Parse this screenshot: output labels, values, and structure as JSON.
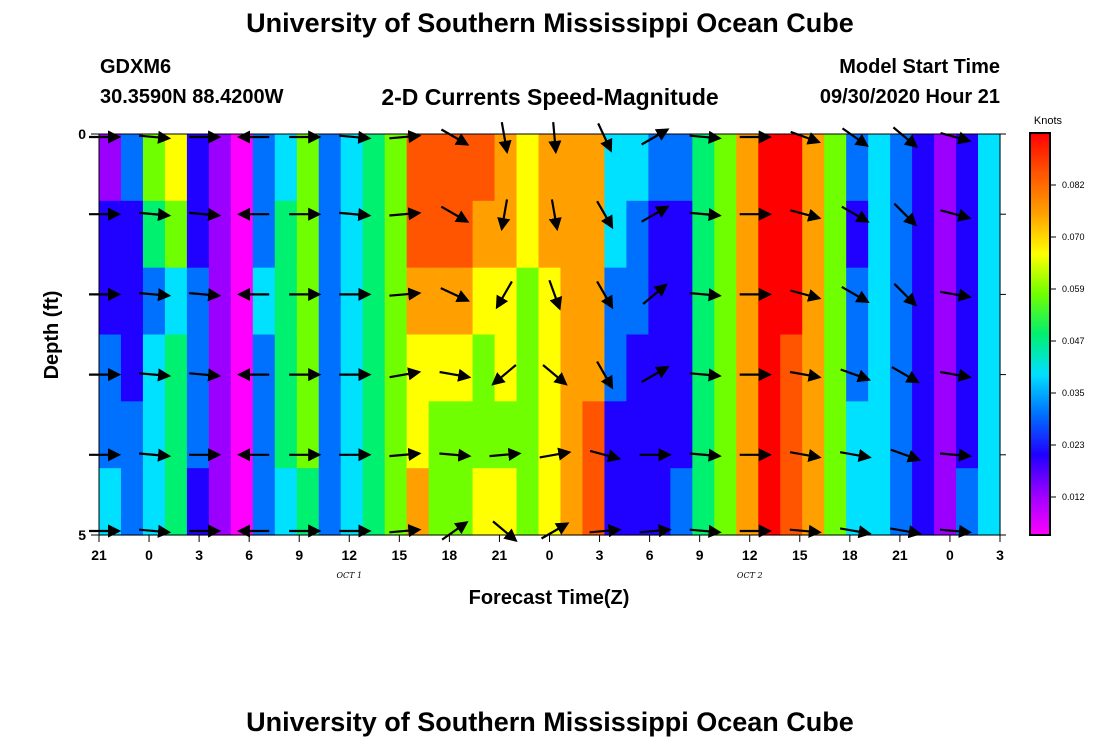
{
  "header": {
    "title": "University of Southern Mississippi Ocean Cube",
    "station_id": "GDXM6",
    "station_coords": "30.3590N 88.4200W",
    "subtitle": "2-D Currents Speed-Magnitude",
    "model_start_label": "Model Start Time",
    "model_start_value": "09/30/2020 Hour 21"
  },
  "footer": {
    "title": "University of Southern Mississippi Ocean Cube"
  },
  "chart_data": {
    "type": "heatmap",
    "title": "2-D Currents Speed-Magnitude",
    "xlabel": "Forecast Time(Z)",
    "ylabel": "Depth (ft)",
    "x_tick_labels": [
      "21",
      "0",
      "3",
      "6",
      "9",
      "12",
      "15",
      "18",
      "21",
      "0",
      "3",
      "6",
      "9",
      "12",
      "15",
      "18",
      "21",
      "0",
      "3"
    ],
    "date_labels": [
      {
        "label": "OCT 1",
        "at_tick": 5
      },
      {
        "label": "OCT 2",
        "at_tick": 13
      }
    ],
    "y_tick_labels": [
      "0",
      "5"
    ],
    "ylim": [
      0,
      5
    ],
    "colorbar": {
      "unit": "Knots",
      "tick_labels": [
        "0.082",
        "0.070",
        "0.059",
        "0.047",
        "0.035",
        "0.023",
        "0.012"
      ],
      "stops": [
        "#ff00ff",
        "#9b00ff",
        "#2000ff",
        "#0070ff",
        "#00e0ff",
        "#00f070",
        "#70ff00",
        "#ffff00",
        "#ffa000",
        "#ff5500",
        "#ff0000"
      ]
    },
    "columns": [
      [
        1,
        2,
        2,
        3,
        3,
        4
      ],
      [
        3,
        2,
        2,
        2,
        3,
        3
      ],
      [
        6,
        5,
        3,
        4,
        4,
        4
      ],
      [
        7,
        6,
        4,
        5,
        5,
        5
      ],
      [
        2,
        2,
        3,
        3,
        3,
        2
      ],
      [
        1,
        1,
        1,
        1,
        1,
        1
      ],
      [
        0,
        0,
        0,
        0,
        0,
        0
      ],
      [
        3,
        3,
        4,
        3,
        3,
        3
      ],
      [
        4,
        5,
        5,
        5,
        5,
        4
      ],
      [
        6,
        6,
        6,
        6,
        6,
        5
      ],
      [
        3,
        3,
        3,
        3,
        3,
        3
      ],
      [
        4,
        4,
        4,
        4,
        4,
        4
      ],
      [
        5,
        5,
        5,
        5,
        5,
        5
      ],
      [
        6,
        6,
        6,
        6,
        6,
        6
      ],
      [
        9,
        9,
        8,
        7,
        7,
        8
      ],
      [
        9,
        9,
        8,
        7,
        6,
        6
      ],
      [
        9,
        9,
        8,
        7,
        6,
        6
      ],
      [
        9,
        8,
        7,
        6,
        6,
        7
      ],
      [
        8,
        8,
        7,
        7,
        6,
        7
      ],
      [
        7,
        7,
        6,
        6,
        6,
        6
      ],
      [
        8,
        8,
        7,
        7,
        7,
        7
      ],
      [
        8,
        8,
        8,
        8,
        8,
        8
      ],
      [
        8,
        8,
        8,
        8,
        9,
        9
      ],
      [
        4,
        4,
        3,
        3,
        2,
        2
      ],
      [
        4,
        3,
        3,
        2,
        2,
        2
      ],
      [
        3,
        2,
        2,
        2,
        2,
        2
      ],
      [
        3,
        2,
        2,
        2,
        2,
        3
      ],
      [
        5,
        5,
        5,
        5,
        5,
        5
      ],
      [
        6,
        6,
        6,
        6,
        6,
        6
      ],
      [
        8,
        8,
        8,
        8,
        8,
        8
      ],
      [
        10,
        10,
        10,
        10,
        10,
        10
      ],
      [
        10,
        10,
        10,
        9,
        9,
        9
      ],
      [
        8,
        8,
        8,
        8,
        8,
        8
      ],
      [
        6,
        6,
        6,
        6,
        6,
        6
      ],
      [
        3,
        2,
        3,
        3,
        4,
        4
      ],
      [
        4,
        4,
        4,
        4,
        4,
        4
      ],
      [
        3,
        3,
        3,
        3,
        3,
        3
      ],
      [
        2,
        2,
        2,
        2,
        2,
        2
      ],
      [
        1,
        1,
        1,
        1,
        1,
        1
      ],
      [
        2,
        2,
        2,
        2,
        2,
        3
      ],
      [
        4,
        4,
        4,
        4,
        4,
        4
      ]
    ],
    "arrow_columns": [
      {
        "tick": 0,
        "dirs": [
          0,
          0,
          0,
          0,
          0,
          0
        ]
      },
      {
        "tick": 1,
        "dirs": [
          5,
          5,
          5,
          5,
          5,
          5
        ]
      },
      {
        "tick": 2,
        "dirs": [
          0,
          5,
          5,
          5,
          0,
          0
        ]
      },
      {
        "tick": 3,
        "dirs": [
          180,
          180,
          180,
          180,
          180,
          180
        ]
      },
      {
        "tick": 4,
        "dirs": [
          0,
          0,
          0,
          0,
          0,
          0
        ]
      },
      {
        "tick": 5,
        "dirs": [
          5,
          5,
          0,
          0,
          0,
          0
        ]
      },
      {
        "tick": 6,
        "dirs": [
          -5,
          -5,
          -5,
          -10,
          -5,
          -5
        ]
      },
      {
        "tick": 7,
        "dirs": [
          30,
          30,
          25,
          10,
          5,
          -35
        ]
      },
      {
        "tick": 8,
        "dirs": [
          80,
          100,
          120,
          140,
          -5,
          40
        ]
      },
      {
        "tick": 9,
        "dirs": [
          85,
          80,
          70,
          40,
          -10,
          -30
        ]
      },
      {
        "tick": 10,
        "dirs": [
          65,
          60,
          60,
          60,
          15,
          -5
        ]
      },
      {
        "tick": 11,
        "dirs": [
          -30,
          -30,
          -40,
          -30,
          0,
          -5
        ]
      },
      {
        "tick": 12,
        "dirs": [
          5,
          5,
          5,
          5,
          5,
          5
        ]
      },
      {
        "tick": 13,
        "dirs": [
          0,
          0,
          0,
          0,
          0,
          0
        ]
      },
      {
        "tick": 14,
        "dirs": [
          20,
          15,
          15,
          10,
          10,
          5
        ]
      },
      {
        "tick": 15,
        "dirs": [
          35,
          30,
          30,
          20,
          10,
          10
        ]
      },
      {
        "tick": 16,
        "dirs": [
          40,
          45,
          45,
          30,
          20,
          10
        ]
      },
      {
        "tick": 17,
        "dirs": [
          15,
          15,
          10,
          10,
          5,
          5
        ]
      }
    ]
  }
}
